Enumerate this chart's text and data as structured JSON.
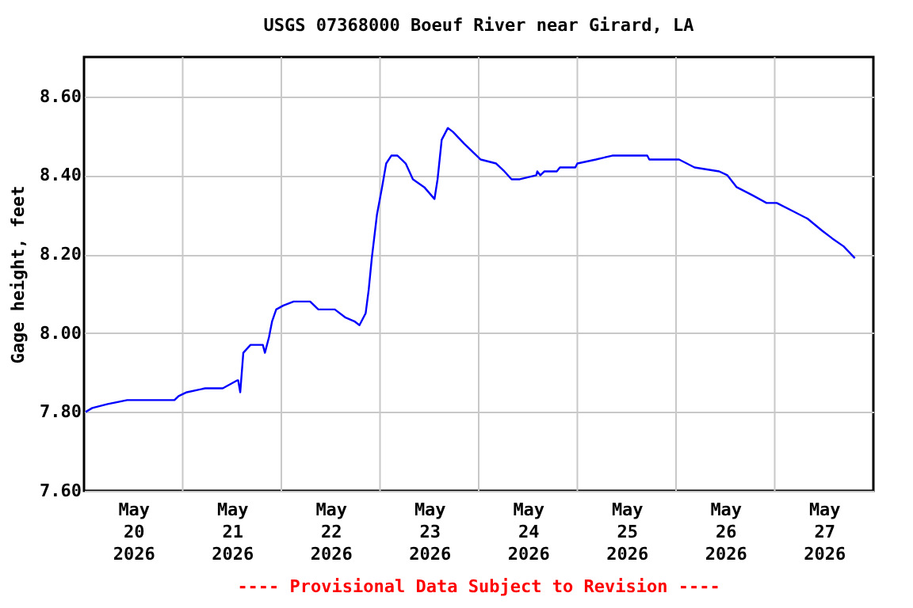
{
  "chart_data": {
    "type": "line",
    "title": "USGS 07368000 Boeuf River near Girard, LA",
    "ylabel": "Gage height, feet",
    "annotations": [
      "---- Provisional Data Subject to Revision ----"
    ],
    "x": [
      "2026-05-20T00:23",
      "2026-05-20T02:00",
      "2026-05-20T05:45",
      "2026-05-20T10:30",
      "2026-05-20T22:00",
      "2026-05-20T23:00",
      "2026-05-21T01:00",
      "2026-05-21T05:30",
      "2026-05-21T09:45",
      "2026-05-21T11:30",
      "2026-05-21T13:15",
      "2026-05-21T13:30",
      "2026-05-21T14:00",
      "2026-05-21T14:45",
      "2026-05-21T16:30",
      "2026-05-21T19:30",
      "2026-05-21T20:00",
      "2026-05-21T21:00",
      "2026-05-21T21:45",
      "2026-05-21T22:45",
      "2026-05-22T00:30",
      "2026-05-22T03:00",
      "2026-05-22T07:00",
      "2026-05-22T09:00",
      "2026-05-22T13:00",
      "2026-05-22T15:30",
      "2026-05-22T17:45",
      "2026-05-22T19:00",
      "2026-05-22T20:30",
      "2026-05-22T21:15",
      "2026-05-22T22:00",
      "2026-05-22T23:15",
      "2026-05-23T00:30",
      "2026-05-23T01:30",
      "2026-05-23T02:45",
      "2026-05-23T04:15",
      "2026-05-23T06:15",
      "2026-05-23T08:00",
      "2026-05-23T10:45",
      "2026-05-23T13:15",
      "2026-05-23T14:00",
      "2026-05-23T15:00",
      "2026-05-23T16:30",
      "2026-05-23T17:45",
      "2026-05-23T20:30",
      "2026-05-23T23:30",
      "2026-05-24T00:30",
      "2026-05-24T04:15",
      "2026-05-24T06:15",
      "2026-05-24T08:00",
      "2026-05-24T10:00",
      "2026-05-24T14:00",
      "2026-05-24T14:15",
      "2026-05-24T15:00",
      "2026-05-24T16:00",
      "2026-05-24T19:00",
      "2026-05-24T19:45",
      "2026-05-24T23:30",
      "2026-05-25T00:00",
      "2026-05-25T04:30",
      "2026-05-25T08:30",
      "2026-05-25T17:00",
      "2026-05-25T17:30",
      "2026-05-26T00:45",
      "2026-05-26T04:30",
      "2026-05-26T10:30",
      "2026-05-26T12:30",
      "2026-05-26T14:45",
      "2026-05-26T18:30",
      "2026-05-26T22:00",
      "2026-05-27T00:30",
      "2026-05-27T04:15",
      "2026-05-27T08:00",
      "2026-05-27T11:30",
      "2026-05-27T14:00",
      "2026-05-27T16:45",
      "2026-05-27T19:30"
    ],
    "series": [
      {
        "color": "#0000ff",
        "values": [
          7.8,
          7.81,
          7.82,
          7.83,
          7.83,
          7.84,
          7.85,
          7.86,
          7.86,
          7.87,
          7.88,
          7.88,
          7.85,
          7.95,
          7.97,
          7.97,
          7.95,
          7.99,
          8.03,
          8.06,
          8.07,
          8.08,
          8.08,
          8.06,
          8.06,
          8.04,
          8.03,
          8.02,
          8.05,
          8.11,
          8.19,
          8.3,
          8.37,
          8.43,
          8.45,
          8.45,
          8.43,
          8.39,
          8.37,
          8.34,
          8.39,
          8.49,
          8.52,
          8.51,
          8.48,
          8.45,
          8.44,
          8.43,
          8.41,
          8.39,
          8.39,
          8.4,
          8.41,
          8.4,
          8.41,
          8.41,
          8.42,
          8.42,
          8.43,
          8.44,
          8.45,
          8.45,
          8.44,
          8.44,
          8.42,
          8.41,
          8.4,
          8.37,
          8.35,
          8.33,
          8.33,
          8.31,
          8.29,
          8.26,
          8.24,
          8.22,
          8.19
        ]
      }
    ],
    "xlim": [
      "2026-05-20T00:00",
      "2026-05-28T00:00"
    ],
    "xticks": [
      {
        "value": "2026-05-20T12:00",
        "label": "May\n20\n2026"
      },
      {
        "value": "2026-05-21T00:00",
        "label": null
      },
      {
        "value": "2026-05-21T12:00",
        "label": "May\n21\n2026"
      },
      {
        "value": "2026-05-22T00:00",
        "label": null
      },
      {
        "value": "2026-05-22T12:00",
        "label": "May\n22\n2026"
      },
      {
        "value": "2026-05-23T00:00",
        "label": null
      },
      {
        "value": "2026-05-23T12:00",
        "label": "May\n23\n2026"
      },
      {
        "value": "2026-05-24T00:00",
        "label": null
      },
      {
        "value": "2026-05-24T12:00",
        "label": "May\n24\n2026"
      },
      {
        "value": "2026-05-25T00:00",
        "label": null
      },
      {
        "value": "2026-05-25T12:00",
        "label": "May\n25\n2026"
      },
      {
        "value": "2026-05-26T00:00",
        "label": null
      },
      {
        "value": "2026-05-26T12:00",
        "label": "May\n26\n2026"
      },
      {
        "value": "2026-05-27T00:00",
        "label": null
      },
      {
        "value": "2026-05-27T12:00",
        "label": "May\n27\n2026"
      }
    ],
    "ylim": [
      7.6,
      8.7
    ],
    "yticks": [
      {
        "value": 7.6,
        "label": "7.60"
      },
      {
        "value": 7.8,
        "label": "7.80"
      },
      {
        "value": 8.0,
        "label": "8.00"
      },
      {
        "value": 8.2,
        "label": "8.20"
      },
      {
        "value": 8.4,
        "label": "8.40"
      },
      {
        "value": 8.6,
        "label": "8.60"
      }
    ],
    "grid": true,
    "marker": "none",
    "line_style": "solid"
  }
}
